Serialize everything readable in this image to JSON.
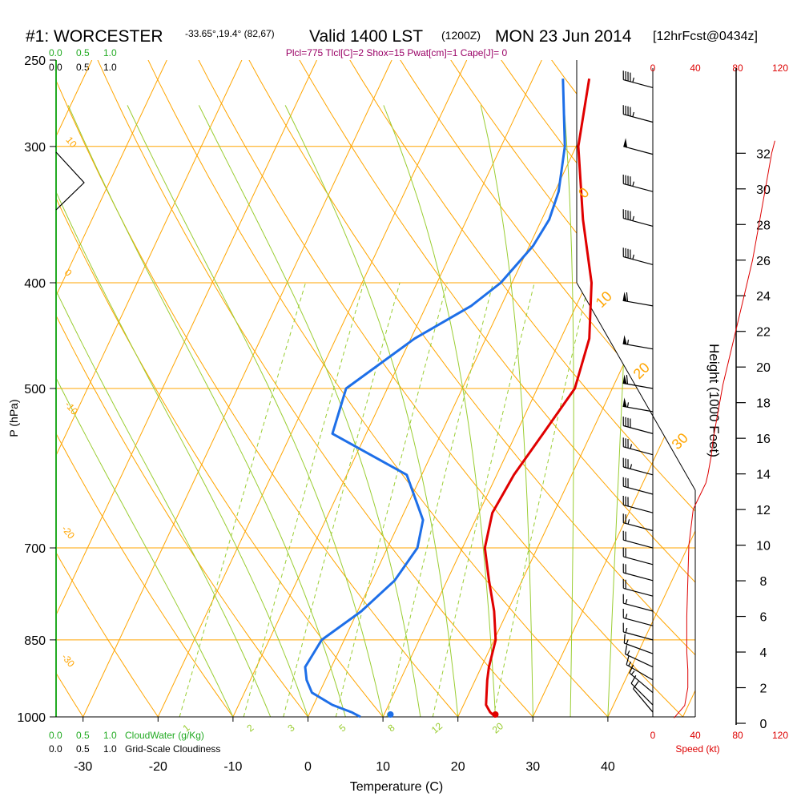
{
  "header": {
    "station": "#1: WORCESTER",
    "coords": "-33.65°,19.4° (82,67)",
    "valid": "Valid 1400 LST",
    "utc": "(1200Z)",
    "date": "MON 23 Jun 2014",
    "forecast": "[12hrFcst@0434z]",
    "indices": "Plcl=775 Tlcl[C]=2 Shox=15 Pwat[cm]=1 Cape[J]= 0"
  },
  "colors": {
    "background": "#ffffff",
    "isotherm": "#ffa500",
    "dry_adiabat": "#ffa500",
    "moist_adiabat": "#9acd32",
    "mixing_ratio": "#9acd32",
    "temperature": "#e00000",
    "dewpoint": "#1e6fe8",
    "cloud": "#22aa22",
    "wind": "#000000",
    "speed": "#dd0000",
    "indices": "#990066"
  },
  "chart_data": [
    {
      "type": "line",
      "title": "",
      "xlabel": "Temperature (C)",
      "ylabel": "P (hPa)",
      "x_ticks": [
        "-30",
        "-20",
        "-10",
        "0",
        "10",
        "20",
        "30",
        "40"
      ],
      "p_ticks": [
        "250",
        "300",
        "400",
        "500",
        "700",
        "850",
        "1000"
      ],
      "xlim": [
        -34,
        36
      ],
      "plim": [
        250,
        1000
      ],
      "series": [
        {
          "key": "temperature",
          "p": [
            1000,
            990,
            975,
            950,
            925,
            900,
            850,
            800,
            750,
            700,
            650,
            600,
            550,
            500,
            450,
            400,
            350,
            300,
            260
          ],
          "t": [
            25,
            24,
            23,
            22.3,
            21.6,
            21,
            20.2,
            18.2,
            15.6,
            13,
            11.8,
            12.3,
            13.6,
            15,
            13.8,
            10.6,
            5.5,
            0.3,
            -2.5
          ]
        },
        {
          "key": "dewpoint",
          "p": [
            1000,
            990,
            975,
            950,
            925,
            900,
            850,
            800,
            750,
            700,
            660,
            600,
            550,
            500,
            450,
            420,
            400,
            370,
            350,
            330,
            300,
            260
          ],
          "t": [
            7,
            5.5,
            2.5,
            -1,
            -2.5,
            -3.5,
            -3,
            0.5,
            3,
            4,
            3,
            -2,
            -14.5,
            -15.5,
            -9.5,
            -4,
            -1.5,
            0.5,
            1,
            0.5,
            -1.5,
            -6
          ]
        }
      ],
      "surface_markers": {
        "t": 25,
        "td": 11
      },
      "isotherm_labels": [
        "0",
        "-10",
        "-20",
        "-30",
        "0",
        "10",
        "20",
        "30"
      ],
      "mixing_ratio_labels": [
        "1",
        "2",
        "3",
        "5",
        "8",
        "12",
        "20"
      ]
    },
    {
      "type": "line",
      "title": "",
      "xlabel": "Speed (kt)",
      "ylabel": "Height (1000 Feet)",
      "speed_ticks": [
        "0",
        "40",
        "80",
        "120"
      ],
      "height_ticks": [
        "0",
        "2",
        "4",
        "6",
        "8",
        "10",
        "12",
        "14",
        "16",
        "18",
        "20",
        "22",
        "24",
        "26",
        "28",
        "30",
        "32"
      ],
      "xlim": [
        0,
        120
      ],
      "ylim": [
        -0.1,
        33.5
      ],
      "series": [
        {
          "key": "wind_speed",
          "height": [
            0.3,
            1,
            2,
            3,
            4,
            6,
            8,
            10,
            12,
            12.5,
            13,
            13.5,
            14,
            15,
            16,
            17,
            18,
            19,
            20,
            22,
            24,
            26,
            28,
            30,
            32,
            32.7
          ],
          "speed": [
            20,
            30,
            33,
            33,
            32,
            32,
            33,
            34,
            38,
            42,
            46,
            50,
            52,
            55,
            57,
            60,
            63,
            66,
            70,
            78,
            86,
            94,
            100,
            106,
            112,
            115
          ]
        }
      ],
      "barbs": [
        {
          "p": 990,
          "dir": 320,
          "spd": 10
        },
        {
          "p": 975,
          "dir": 315,
          "spd": 10
        },
        {
          "p": 950,
          "dir": 310,
          "spd": 15
        },
        {
          "p": 925,
          "dir": 300,
          "spd": 15
        },
        {
          "p": 900,
          "dir": 295,
          "spd": 15
        },
        {
          "p": 875,
          "dir": 290,
          "spd": 15
        },
        {
          "p": 850,
          "dir": 285,
          "spd": 15
        },
        {
          "p": 825,
          "dir": 285,
          "spd": 15
        },
        {
          "p": 800,
          "dir": 285,
          "spd": 15
        },
        {
          "p": 775,
          "dir": 285,
          "spd": 20
        },
        {
          "p": 750,
          "dir": 285,
          "spd": 20
        },
        {
          "p": 725,
          "dir": 285,
          "spd": 20
        },
        {
          "p": 700,
          "dir": 285,
          "spd": 20
        },
        {
          "p": 675,
          "dir": 285,
          "spd": 25
        },
        {
          "p": 650,
          "dir": 285,
          "spd": 30
        },
        {
          "p": 625,
          "dir": 285,
          "spd": 30
        },
        {
          "p": 600,
          "dir": 285,
          "spd": 35
        },
        {
          "p": 575,
          "dir": 285,
          "spd": 35
        },
        {
          "p": 550,
          "dir": 285,
          "spd": 40
        },
        {
          "p": 525,
          "dir": 280,
          "spd": 55
        },
        {
          "p": 500,
          "dir": 280,
          "spd": 60
        },
        {
          "p": 460,
          "dir": 280,
          "spd": 55
        },
        {
          "p": 420,
          "dir": 280,
          "spd": 60
        },
        {
          "p": 385,
          "dir": 285,
          "spd": 45
        },
        {
          "p": 355,
          "dir": 285,
          "spd": 45
        },
        {
          "p": 330,
          "dir": 285,
          "spd": 45
        },
        {
          "p": 305,
          "dir": 285,
          "spd": 50
        },
        {
          "p": 285,
          "dir": 285,
          "spd": 45
        },
        {
          "p": 265,
          "dir": 285,
          "spd": 45
        }
      ]
    }
  ],
  "cloud_water": {
    "label": "CloudWater (g/Kg)",
    "ticks": [
      "0.0",
      "0.5",
      "1.0"
    ]
  },
  "cloudiness": {
    "label": "Grid-Scale Cloudiness",
    "ticks": [
      "0.0",
      "0.5",
      "1.0"
    ]
  }
}
